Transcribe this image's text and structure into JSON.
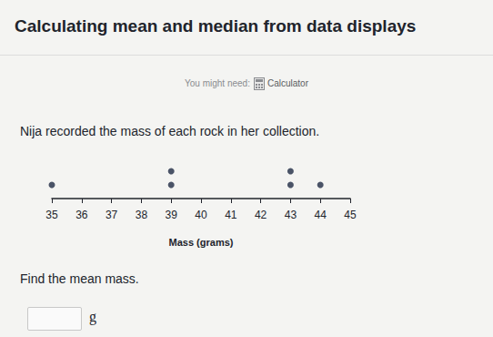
{
  "page": {
    "heading": "Calculating mean and median from data displays",
    "hint": "You might need:",
    "tool": "Calculator",
    "prompt": "Nija recorded the mass of each rock in her collection.",
    "question": "Find the mean mass.",
    "unit": "g"
  },
  "chart_data": {
    "type": "dot",
    "x": [
      35,
      39,
      43,
      44
    ],
    "values": [
      1,
      2,
      2,
      1
    ],
    "color": "#1f2a44",
    "xlabel": "Mass (grams)",
    "xlim": [
      35,
      45
    ],
    "xticks": [
      35,
      36,
      37,
      38,
      39,
      40,
      41,
      42,
      43,
      44,
      45
    ],
    "tick_labels": "x",
    "grid": false,
    "marker": "circle"
  }
}
